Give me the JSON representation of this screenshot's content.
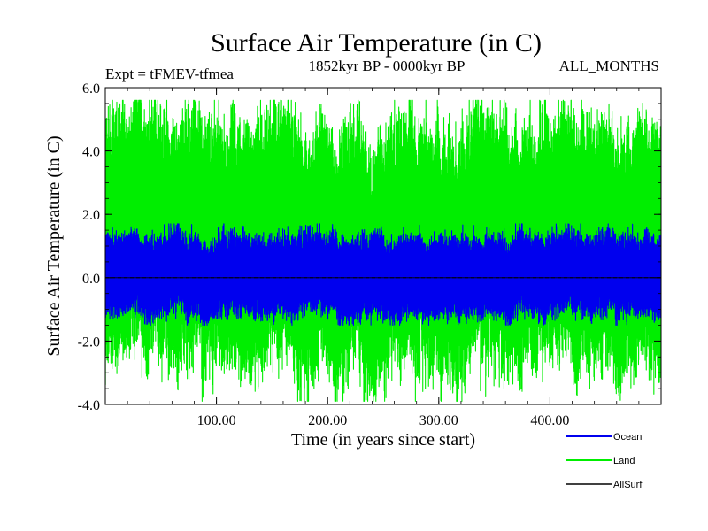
{
  "chart_data": {
    "type": "line",
    "title": "Surface Air Temperature (in C)",
    "experiment_label": "Expt = tFMEV-tfmea",
    "period_label": "1852kyr BP - 0000kyr BP",
    "months_label": "ALL_MONTHS",
    "xlabel": "Time (in years since start)",
    "ylabel": "Surface Air Temperature (in C)",
    "xlim": [
      0,
      500
    ],
    "ylim": [
      -4.0,
      6.0
    ],
    "x_ticks": [
      {
        "value": 100,
        "label": "100.00"
      },
      {
        "value": 200,
        "label": "200.00"
      },
      {
        "value": 300,
        "label": "300.00"
      },
      {
        "value": 400,
        "label": "400.00"
      }
    ],
    "y_ticks": [
      {
        "value": 6.0,
        "label": "6.0"
      },
      {
        "value": 4.0,
        "label": "4.0"
      },
      {
        "value": 2.0,
        "label": "2.0"
      },
      {
        "value": 0.0,
        "label": "0.0"
      },
      {
        "value": -2.0,
        "label": "-2.0"
      },
      {
        "value": -4.0,
        "label": "-4.0"
      }
    ],
    "legend_position": "bottom-right",
    "series": [
      {
        "name": "Land",
        "color": "#00ee00",
        "mean": 0.0,
        "typical_min": -2.8,
        "typical_max": 4.8,
        "extreme_min": -3.9,
        "extreme_max": 5.6,
        "samples_per_year": 12
      },
      {
        "name": "Ocean",
        "color": "#0000ee",
        "mean": 0.0,
        "typical_min": -1.2,
        "typical_max": 1.3,
        "extreme_min": -1.5,
        "extreme_max": 1.7,
        "samples_per_year": 12
      },
      {
        "name": "AllSurf",
        "color": "#000000",
        "values_const": 0.0
      }
    ],
    "zero_line": true
  }
}
